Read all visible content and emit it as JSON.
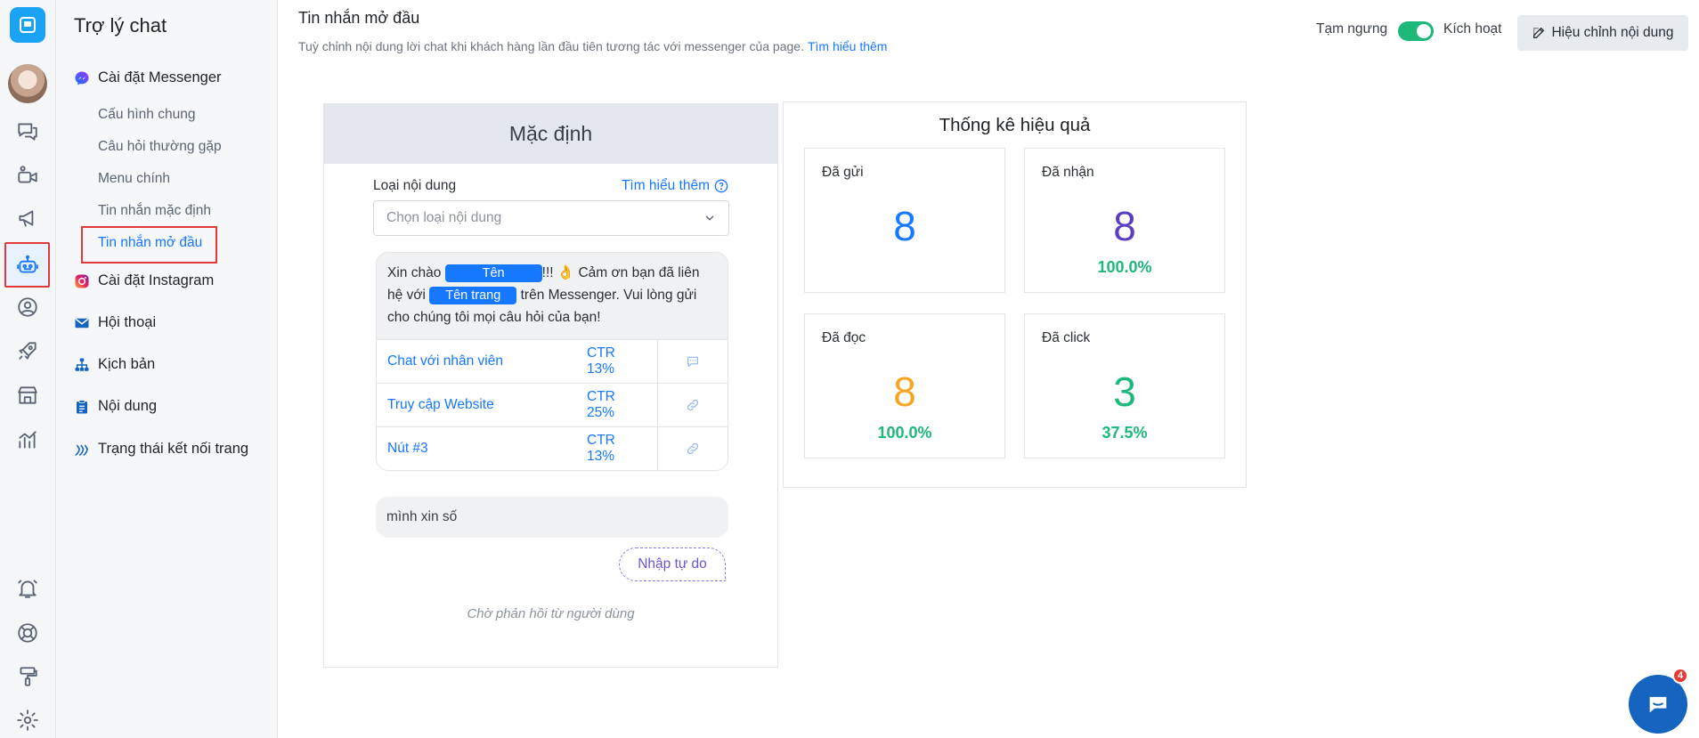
{
  "rail": {
    "icons": [
      "app-logo-icon",
      "chat-bubbles-icon",
      "video-camera-icon",
      "megaphone-icon",
      "robot-icon",
      "user-circle-icon",
      "rocket-icon",
      "store-icon",
      "analytics-icon",
      "bell-icon",
      "support-icon",
      "paint-roller-icon",
      "gear-icon"
    ],
    "active_icon": "robot-icon"
  },
  "nav": {
    "title": "Trợ lý chat",
    "messenger": "Cài đặt Messenger",
    "sub_items": [
      "Cấu hình chung",
      "Câu hỏi thường gặp",
      "Menu chính",
      "Tin nhắn mặc định",
      "Tin nhắn mở đầu"
    ],
    "active_sub": "Tin nhắn mở đầu",
    "instagram": "Cài đặt Instagram",
    "conversations": "Hội thoại",
    "scenarios": "Kịch bản",
    "content": "Nội dung",
    "connection_status": "Trạng thái kết nối trang"
  },
  "header": {
    "title": "Tin nhắn mở đầu",
    "description": "Tuỳ chỉnh nội dung lời chat khi khách hàng lần đầu tiên tương tác với messenger của page.",
    "learn_more": "Tìm hiểu thêm",
    "paused_label": "Tạm ngưng",
    "active_label": "Kích hoạt",
    "toggle_on": true,
    "edit_button": "Hiệu chỉnh nội dung"
  },
  "card": {
    "title": "Mặc định",
    "content_type_label": "Loại nội dung",
    "learn_more": "Tìm hiểu thêm",
    "select_placeholder": "Chọn loại nội dung",
    "message": {
      "part1": "Xin chào",
      "name_tag": "Tên",
      "part2": "!!! 👌 Cảm ơn bạn đã liên hệ",
      "part3": "với",
      "page_tag": "Tên trang",
      "part4": "trên Messenger. Vui lòng gửi cho chúng tôi mọi câu hỏi của bạn!"
    },
    "buttons": [
      {
        "label": "Chat với nhân viên",
        "ctr": "CTR 13%",
        "icon": "chat-icon"
      },
      {
        "label": "Truy cập Website",
        "ctr": "CTR 25%",
        "icon": "link-icon"
      },
      {
        "label": "Nút #3",
        "ctr": "CTR 13%",
        "icon": "link-icon"
      }
    ],
    "user_reply": "mình xin số",
    "free_input": "Nhập tự do",
    "waiting": "Chờ phản hồi từ người dùng"
  },
  "stats": {
    "title": "Thống kê hiệu quả",
    "items": [
      {
        "label": "Đã gửi",
        "value": "8",
        "percent": "",
        "color": "#1677ff"
      },
      {
        "label": "Đã nhận",
        "value": "8",
        "percent": "100.0%",
        "color": "#5b3cc4"
      },
      {
        "label": "Đã đọc",
        "value": "8",
        "percent": "100.0%",
        "color": "#f5a623"
      },
      {
        "label": "Đã click",
        "value": "3",
        "percent": "37.5%",
        "color": "#1db87a"
      }
    ]
  },
  "chat_widget": {
    "badge_count": "4"
  }
}
